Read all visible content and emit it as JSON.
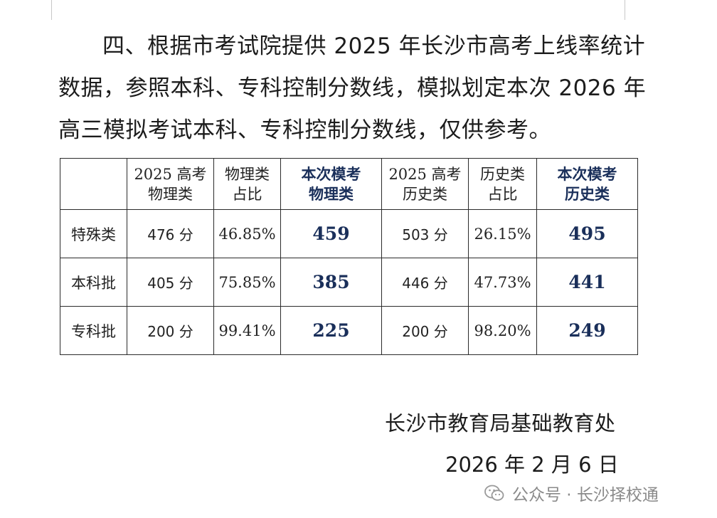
{
  "paragraph": {
    "lines": [
      "四、根据市考试院提供 2025 年长沙市高考上线率统计",
      "数据，参照本科、专科控制分数线，模拟划定本次 2026 年",
      "高三模拟考试本科、专科控制分数线，仅供参考。"
    ]
  },
  "table": {
    "headers": [
      {
        "line1": "",
        "line2": ""
      },
      {
        "line1": "2025 高考",
        "line2": "物理类"
      },
      {
        "line1": "物理类",
        "line2": "占比"
      },
      {
        "line1": "本次模考",
        "line2": "物理类"
      },
      {
        "line1": "2025 高考",
        "line2": "历史类"
      },
      {
        "line1": "历史类",
        "line2": "占比"
      },
      {
        "line1": "本次模考",
        "line2": "历史类"
      }
    ],
    "rows": [
      {
        "label": "特殊类",
        "physics_2025": "476 分",
        "physics_ratio": "46.85%",
        "physics_mock": "459",
        "history_2025": "503 分",
        "history_ratio": "26.15%",
        "history_mock": "495"
      },
      {
        "label": "本科批",
        "physics_2025": "405 分",
        "physics_ratio": "75.85%",
        "physics_mock": "385",
        "history_2025": "446 分",
        "history_ratio": "47.73%",
        "history_mock": "441"
      },
      {
        "label": "专科批",
        "physics_2025": "200 分",
        "physics_ratio": "99.41%",
        "physics_mock": "225",
        "history_2025": "200 分",
        "history_ratio": "98.20%",
        "history_mock": "249"
      }
    ]
  },
  "signature": {
    "organization": "长沙市教育局基础教育处",
    "date": "2026 年 2 月 6 日"
  },
  "watermark": {
    "icon": "wechat-icon",
    "text": "公众号 · 长沙择校通"
  }
}
